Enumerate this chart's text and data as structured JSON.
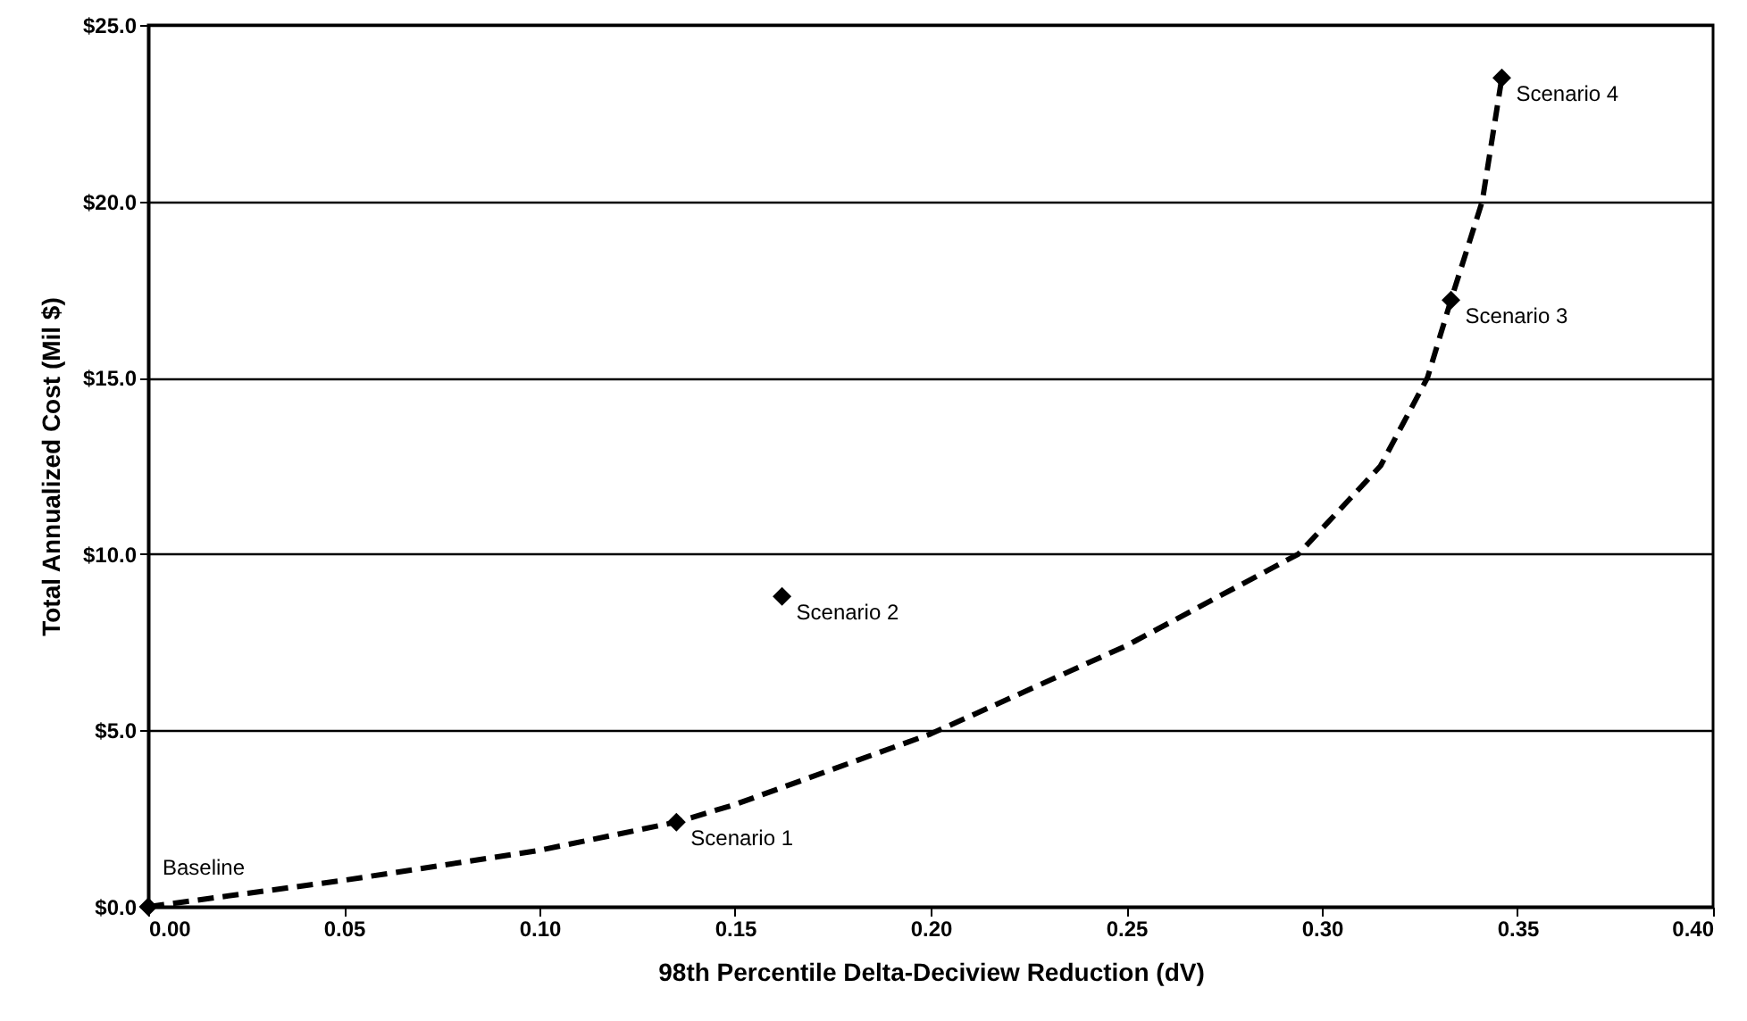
{
  "chart_data": {
    "type": "scatter",
    "xlabel": "98th Percentile Delta-Deciview Reduction (dV)",
    "ylabel": "Total Annualized Cost (Mil $)",
    "series": [
      {
        "type": "line",
        "color": "#000000",
        "line_style": "dashed",
        "marker": "none",
        "x": [
          0,
          0.05,
          0.1,
          0.135,
          0.15,
          0.2,
          0.25,
          0.294,
          0.315,
          0.327,
          0.333,
          0.341,
          0.346
        ],
        "values": [
          0,
          0.75,
          1.6,
          2.4,
          2.9,
          4.9,
          7.4,
          10,
          12.5,
          15,
          17.2,
          20,
          23.5
        ]
      },
      {
        "color": "#000000",
        "marker": "diamond",
        "x": [
          0,
          0.135,
          0.162,
          0.333,
          0.346
        ],
        "values": [
          0,
          2.4,
          8.8,
          17.2,
          23.5
        ]
      }
    ],
    "annotations": [
      {
        "text": "Baseline",
        "x": 0,
        "y": 0
      },
      {
        "text": "Scenario 1",
        "x": 0.135,
        "y": 2.4
      },
      {
        "text": "Scenario 2",
        "x": 0.162,
        "y": 8.8
      },
      {
        "text": "Scenario 3",
        "x": 0.333,
        "y": 17.2
      },
      {
        "text": "Scenario 4",
        "x": 0.346,
        "y": 23.5
      }
    ],
    "xlim": [
      0,
      0.4
    ],
    "ylim": [
      0,
      25
    ],
    "xticks": [
      {
        "value": 0,
        "label": "0.00"
      },
      {
        "value": 0.05,
        "label": "0.05"
      },
      {
        "value": 0.1,
        "label": "0.10"
      },
      {
        "value": 0.15,
        "label": "0.15"
      },
      {
        "value": 0.2,
        "label": "0.20"
      },
      {
        "value": 0.25,
        "label": "0.25"
      },
      {
        "value": 0.3,
        "label": "0.30"
      },
      {
        "value": 0.35,
        "label": "0.35"
      },
      {
        "value": 0.4,
        "label": "0.40"
      }
    ],
    "yticks": [
      {
        "value": 0,
        "label": "$0.0"
      },
      {
        "value": 5,
        "label": "$5.0"
      },
      {
        "value": 10,
        "label": "$10.0"
      },
      {
        "value": 15,
        "label": "$15.0"
      },
      {
        "value": 20,
        "label": "$20.0"
      },
      {
        "value": 25,
        "label": "$25.0"
      }
    ],
    "grid": "y"
  }
}
